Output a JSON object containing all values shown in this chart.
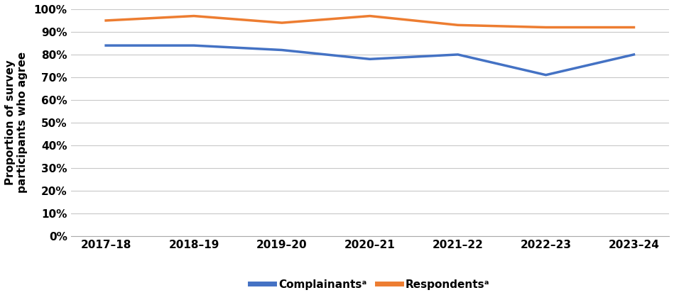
{
  "categories": [
    "2017–18",
    "2018–19",
    "2019–20",
    "2020–21",
    "2021–22",
    "2022–23",
    "2023–24"
  ],
  "complainants": [
    0.84,
    0.84,
    0.82,
    0.78,
    0.8,
    0.71,
    0.8
  ],
  "respondents": [
    0.95,
    0.97,
    0.94,
    0.97,
    0.93,
    0.92,
    0.92
  ],
  "complainants_color": "#4472C4",
  "respondents_color": "#ED7D31",
  "ylabel": "Proportion of survey\nparticipants who agree",
  "ylim": [
    0.0,
    1.0
  ],
  "yticks": [
    0.0,
    0.1,
    0.2,
    0.3,
    0.4,
    0.5,
    0.6,
    0.7,
    0.8,
    0.9,
    1.0
  ],
  "legend_complainants": "Complainantsᵃ",
  "legend_respondents": "Respondentsᵃ",
  "line_width": 2.5,
  "background_color": "#ffffff",
  "grid_color": "#c8c8c8",
  "tick_fontsize": 11,
  "ylabel_fontsize": 11,
  "legend_fontsize": 11
}
